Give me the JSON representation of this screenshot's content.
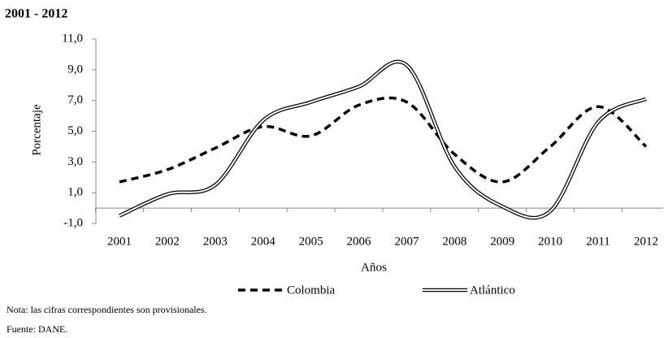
{
  "chart_data": {
    "type": "line",
    "title": "2001 - 2012",
    "y_label": "Porcentaje",
    "x_label": "Años",
    "categories": [
      "2001",
      "2002",
      "2003",
      "2004",
      "2005",
      "2006",
      "2007",
      "2008",
      "2009",
      "2010",
      "2011",
      "2012"
    ],
    "series": [
      {
        "name": "Colombia",
        "color": "#000000",
        "style": "dashed",
        "values": [
          1.7,
          2.5,
          3.9,
          5.3,
          4.7,
          6.7,
          6.9,
          3.5,
          1.7,
          4.0,
          6.6,
          4.0
        ]
      },
      {
        "name": "Atlántico",
        "color": "#000000",
        "style": "double",
        "values": [
          -0.5,
          0.9,
          1.5,
          5.7,
          6.9,
          7.9,
          9.3,
          2.7,
          0.1,
          -0.2,
          5.6,
          7.1
        ]
      }
    ],
    "ylim": [
      -1,
      11
    ],
    "yticks": [
      {
        "value": -1,
        "label": "-1,0"
      },
      {
        "value": 1,
        "label": "1,0"
      },
      {
        "value": 3,
        "label": "3,0"
      },
      {
        "value": 5,
        "label": "5,0"
      },
      {
        "value": 7,
        "label": "7,0"
      },
      {
        "value": 9,
        "label": "9,0"
      },
      {
        "value": 11,
        "label": "11,0"
      }
    ],
    "grid": false,
    "legend": "bottom",
    "notes": [
      "Nota: las cifras correspondientes son provisionales.",
      "Fuente: DANE."
    ]
  }
}
